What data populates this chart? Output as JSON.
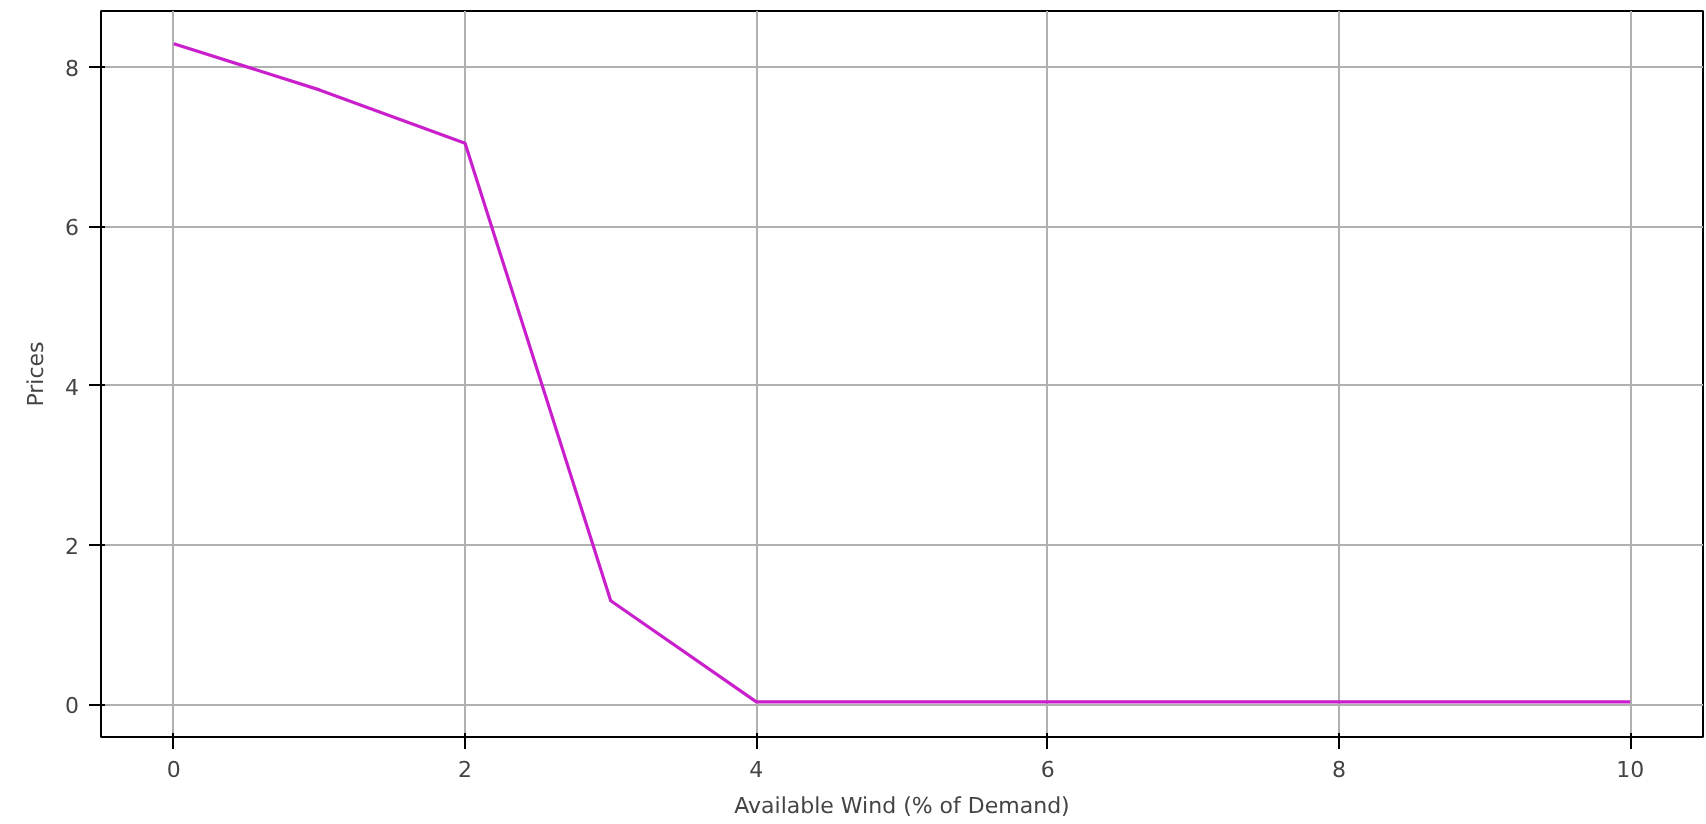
{
  "chart_data": {
    "type": "line",
    "xlabel": "Available Wind (% of Demand)",
    "ylabel": "Prices",
    "x": [
      0,
      1,
      2,
      3,
      4,
      5,
      6,
      7,
      8,
      9,
      10
    ],
    "series": [
      {
        "color": "#c91ecb",
        "values": [
          8.29,
          7.71,
          7.04,
          1.3,
          0.03,
          0.03,
          0.03,
          0.03,
          0.03,
          0.03,
          0.03
        ]
      }
    ],
    "xlim": [
      -0.5,
      10.5
    ],
    "ylim": [
      -0.41,
      8.7
    ],
    "xticks": [
      0,
      2,
      4,
      6,
      8,
      10
    ],
    "yticks": [
      0,
      2,
      4,
      6,
      8
    ],
    "grid": true,
    "marker": "none",
    "line_style": "solid"
  }
}
